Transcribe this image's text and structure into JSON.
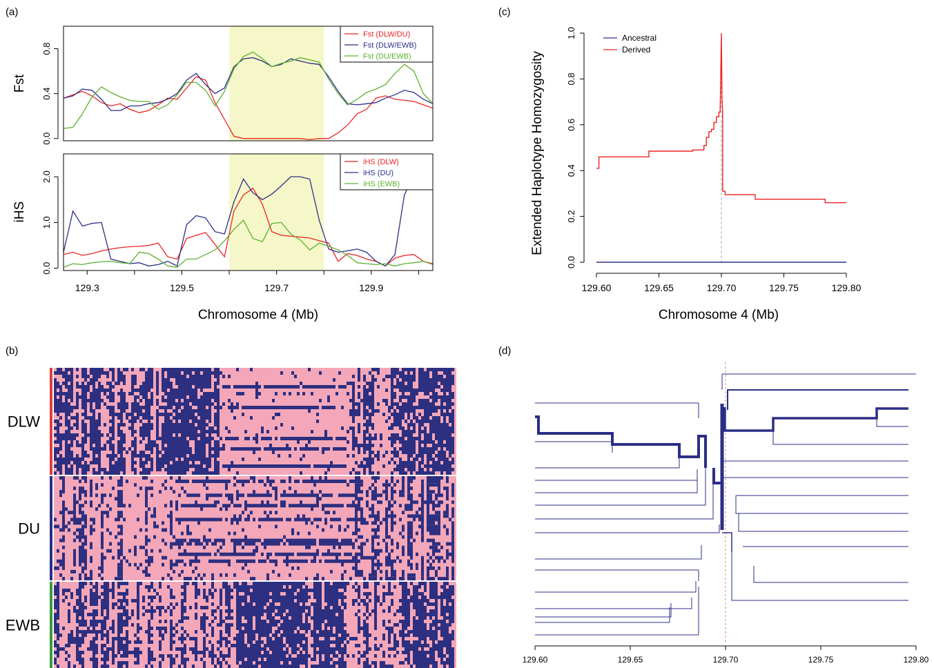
{
  "panel_labels": {
    "a": "(a)",
    "b": "(b)",
    "c": "(c)",
    "d": "(d)"
  },
  "chart_data": [
    {
      "id": "fst",
      "type": "line",
      "ylabel": "Fst",
      "xlim": [
        129.25,
        130.03
      ],
      "ylim": [
        -0.02,
        1.0
      ],
      "yticks": [
        "0.0",
        "0.4",
        "0.8"
      ],
      "ytick_values": [
        0.0,
        0.4,
        0.8
      ],
      "highlight": [
        129.6,
        129.8
      ],
      "legend_position": "top-right",
      "x": [
        129.25,
        129.27,
        129.29,
        129.31,
        129.33,
        129.35,
        129.37,
        129.39,
        129.41,
        129.43,
        129.45,
        129.47,
        129.49,
        129.51,
        129.53,
        129.55,
        129.57,
        129.59,
        129.61,
        129.63,
        129.65,
        129.67,
        129.69,
        129.71,
        129.73,
        129.75,
        129.77,
        129.79,
        129.81,
        129.83,
        129.85,
        129.87,
        129.89,
        129.91,
        129.93,
        129.95,
        129.97,
        129.99,
        130.01,
        130.03
      ],
      "series": [
        {
          "name": "Fst (DLW/DU)",
          "color": "#ee2222",
          "values": [
            0.36,
            0.39,
            0.42,
            0.38,
            0.32,
            0.29,
            0.31,
            0.26,
            0.23,
            0.25,
            0.3,
            0.36,
            0.35,
            0.45,
            0.55,
            0.52,
            0.32,
            0.17,
            0.02,
            0.0,
            0.0,
            0.0,
            0.0,
            0.0,
            0.0,
            0.0,
            -0.01,
            0.0,
            0.0,
            0.05,
            0.12,
            0.22,
            0.26,
            0.36,
            0.38,
            0.35,
            0.34,
            0.33,
            0.3,
            0.27
          ]
        },
        {
          "name": "Fst (DLW/EWB)",
          "color": "#2b2e86",
          "values": [
            0.36,
            0.38,
            0.44,
            0.43,
            0.35,
            0.25,
            0.25,
            0.29,
            0.29,
            0.31,
            0.32,
            0.35,
            0.4,
            0.52,
            0.58,
            0.48,
            0.4,
            0.45,
            0.64,
            0.71,
            0.72,
            0.69,
            0.64,
            0.66,
            0.71,
            0.69,
            0.67,
            0.66,
            0.55,
            0.42,
            0.31,
            0.3,
            0.31,
            0.32,
            0.36,
            0.39,
            0.43,
            0.41,
            0.35,
            0.31
          ]
        },
        {
          "name": "Fst (DU/EWB)",
          "color": "#5cb030",
          "values": [
            0.09,
            0.1,
            0.22,
            0.37,
            0.46,
            0.41,
            0.37,
            0.34,
            0.33,
            0.33,
            0.26,
            0.3,
            0.39,
            0.5,
            0.5,
            0.43,
            0.29,
            0.42,
            0.62,
            0.73,
            0.77,
            0.71,
            0.64,
            0.67,
            0.69,
            0.72,
            0.7,
            0.68,
            0.53,
            0.4,
            0.3,
            0.35,
            0.41,
            0.44,
            0.48,
            0.58,
            0.66,
            0.6,
            0.4,
            0.31
          ]
        }
      ]
    },
    {
      "id": "ihs",
      "type": "line",
      "ylabel": "iHS",
      "xlabel": "Chromosome 4 (Mb)",
      "xlim": [
        129.25,
        130.03
      ],
      "ylim": [
        -0.05,
        2.5
      ],
      "yticks": [
        "0.0",
        "1.0",
        "2.0"
      ],
      "ytick_values": [
        0.0,
        1.0,
        2.0
      ],
      "xticks": [
        "129.3",
        "129.5",
        "129.7",
        "129.9"
      ],
      "xtick_values": [
        129.3,
        129.4,
        129.5,
        129.6,
        129.7,
        129.8,
        129.9,
        130.0
      ],
      "xtick_labels": [
        "129.3",
        "",
        "129.5",
        "",
        "129.7",
        "",
        "129.9",
        ""
      ],
      "highlight": [
        129.6,
        129.8
      ],
      "legend_position": "top-right",
      "x": [
        129.25,
        129.27,
        129.29,
        129.31,
        129.33,
        129.35,
        129.37,
        129.39,
        129.41,
        129.43,
        129.45,
        129.47,
        129.49,
        129.51,
        129.53,
        129.55,
        129.57,
        129.59,
        129.61,
        129.63,
        129.65,
        129.67,
        129.69,
        129.71,
        129.73,
        129.75,
        129.77,
        129.79,
        129.81,
        129.83,
        129.85,
        129.87,
        129.89,
        129.91,
        129.93,
        129.95,
        129.97,
        129.99,
        130.01,
        130.03
      ],
      "series": [
        {
          "name": "iHS (DLW)",
          "color": "#ee2222",
          "values": [
            0.3,
            0.35,
            0.28,
            0.32,
            0.38,
            0.42,
            0.45,
            0.47,
            0.48,
            0.5,
            0.55,
            0.25,
            0.2,
            0.65,
            0.72,
            0.78,
            0.52,
            0.25,
            1.25,
            1.6,
            1.75,
            1.4,
            0.8,
            0.72,
            0.7,
            0.68,
            0.66,
            0.6,
            0.55,
            0.15,
            0.32,
            0.28,
            0.2,
            0.15,
            0.05,
            0.22,
            0.28,
            0.3,
            0.15,
            0.1
          ]
        },
        {
          "name": "iHS (DU)",
          "color": "#2b2e86",
          "values": [
            0.35,
            1.25,
            0.92,
            0.98,
            1.0,
            0.2,
            0.15,
            0.1,
            0.12,
            0.05,
            0.08,
            0.15,
            0.05,
            0.95,
            1.15,
            1.1,
            0.8,
            0.75,
            1.45,
            1.95,
            1.65,
            1.5,
            1.62,
            1.8,
            2.0,
            2.0,
            1.95,
            1.05,
            0.42,
            0.35,
            0.38,
            0.42,
            0.35,
            0.15,
            0.05,
            0.3,
            1.6,
            2.05,
            2.15,
            2.1
          ]
        },
        {
          "name": "iHS (EWB)",
          "color": "#5cb030",
          "values": [
            0.02,
            0.1,
            0.08,
            0.12,
            0.14,
            0.15,
            0.12,
            0.1,
            0.35,
            0.32,
            0.2,
            0.05,
            0.02,
            0.2,
            0.2,
            0.3,
            0.4,
            0.6,
            0.85,
            1.05,
            0.65,
            0.58,
            0.98,
            1.0,
            0.75,
            0.62,
            0.4,
            0.55,
            0.48,
            0.4,
            0.28,
            0.12,
            0.1,
            0.08,
            0.1,
            0.05,
            0.1,
            0.12,
            0.15,
            0.08
          ]
        }
      ]
    },
    {
      "id": "ehh",
      "type": "line",
      "ylabel": "Extended Haplotype Homozygosity",
      "xlabel": "Chromosome 4 (Mb)",
      "xlim": [
        129.6,
        129.8
      ],
      "ylim": [
        0.0,
        1.0
      ],
      "xticks": [
        "129.60",
        "129.65",
        "129.70",
        "129.75",
        "129.80"
      ],
      "xtick_values": [
        129.6,
        129.65,
        129.7,
        129.75,
        129.8
      ],
      "yticks": [
        "0.0",
        "0.2",
        "0.4",
        "0.6",
        "0.8",
        "1.0"
      ],
      "ytick_values": [
        0.0,
        0.2,
        0.4,
        0.6,
        0.8,
        1.0
      ],
      "core_position": 129.7,
      "legend_position": "top-left",
      "series": [
        {
          "name": "Ancestral",
          "color": "#2b2e86",
          "x": [
            129.6,
            129.8
          ],
          "values": [
            0.0,
            0.0
          ]
        },
        {
          "name": "Derived",
          "color": "#ee2222",
          "x": [
            129.6,
            129.602,
            129.602,
            129.642,
            129.642,
            129.677,
            129.677,
            129.686,
            129.686,
            129.688,
            129.688,
            129.69,
            129.69,
            129.692,
            129.692,
            129.694,
            129.694,
            129.696,
            129.696,
            129.698,
            129.698,
            129.699,
            129.6995,
            129.7,
            129.7005,
            129.701,
            129.701,
            129.703,
            129.703,
            129.727,
            129.727,
            129.783,
            129.783,
            129.8
          ],
          "values": [
            0.41,
            0.41,
            0.46,
            0.46,
            0.485,
            0.485,
            0.49,
            0.49,
            0.51,
            0.51,
            0.545,
            0.545,
            0.57,
            0.57,
            0.58,
            0.58,
            0.61,
            0.61,
            0.635,
            0.635,
            0.655,
            0.655,
            0.82,
            1.0,
            0.72,
            0.655,
            0.31,
            0.31,
            0.295,
            0.295,
            0.275,
            0.275,
            0.26,
            0.26
          ]
        }
      ]
    },
    {
      "id": "haplotypes",
      "type": "heatmap",
      "groups": [
        {
          "label": "DLW",
          "color": "#e23b3b"
        },
        {
          "label": "DU",
          "color": "#2b2e86"
        },
        {
          "label": "EWB",
          "color": "#3a9a3a"
        }
      ],
      "colors": {
        "allele_0": "#f4a7b9",
        "allele_1": "#2d2f80"
      }
    },
    {
      "id": "bifurcation",
      "type": "line",
      "xlim": [
        129.6,
        129.8
      ],
      "xticks": [
        "129.60",
        "129.65",
        "129.70",
        "129.75",
        "129.80"
      ],
      "xtick_values": [
        129.6,
        129.65,
        129.7,
        129.75,
        129.8
      ],
      "core_position": 129.7,
      "color": "#2b2e86"
    }
  ]
}
